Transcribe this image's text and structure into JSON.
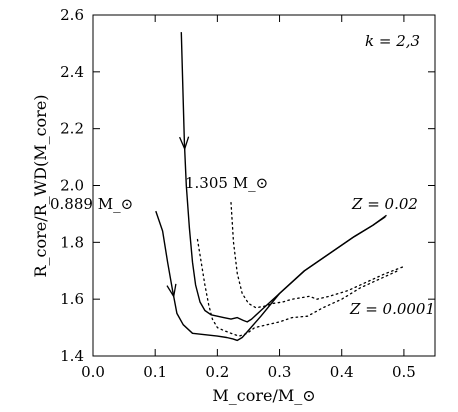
{
  "chart_data": {
    "type": "line",
    "xlabel": "M_core/M_⊙",
    "ylabel": "R_core/R_WD(M_core)",
    "xlim": [
      0.0,
      0.55
    ],
    "ylim": [
      1.4,
      2.6
    ],
    "xticks": [
      "0.0",
      "0.1",
      "0.2",
      "0.3",
      "0.4",
      "0.5"
    ],
    "yticks": [
      "1.4",
      "1.6",
      "1.8",
      "2.0",
      "2.2",
      "2.4",
      "2.6"
    ],
    "grid": false,
    "annotations": {
      "k": "k = 2,3",
      "mass_low": "0.889 M_⊙",
      "mass_high": "1.305 M_⊙",
      "z_high": "Z = 0.02",
      "z_low": "Z = 0.0001"
    },
    "series": [
      {
        "style": "solid",
        "x": [
          0.101,
          0.112,
          0.12,
          0.128,
          0.135,
          0.145,
          0.16,
          0.18,
          0.2,
          0.215,
          0.225,
          0.232,
          0.24,
          0.25,
          0.27,
          0.3,
          0.34,
          0.38,
          0.42,
          0.45,
          0.47
        ],
        "y": [
          1.91,
          1.84,
          1.73,
          1.63,
          1.55,
          1.51,
          1.48,
          1.475,
          1.47,
          1.465,
          1.46,
          1.455,
          1.465,
          1.49,
          1.54,
          1.62,
          1.7,
          1.76,
          1.82,
          1.86,
          1.89
        ]
      },
      {
        "style": "solid",
        "x": [
          0.142,
          0.145,
          0.147,
          0.15,
          0.155,
          0.16,
          0.165,
          0.172,
          0.18,
          0.19,
          0.2,
          0.21,
          0.222,
          0.232,
          0.242,
          0.248,
          0.255,
          0.27,
          0.3,
          0.34,
          0.38,
          0.42,
          0.45,
          0.472
        ],
        "y": [
          2.54,
          2.3,
          2.15,
          2.0,
          1.85,
          1.73,
          1.65,
          1.59,
          1.56,
          1.545,
          1.54,
          1.535,
          1.53,
          1.535,
          1.525,
          1.52,
          1.53,
          1.56,
          1.62,
          1.7,
          1.76,
          1.82,
          1.86,
          1.895
        ]
      },
      {
        "style": "dotted",
        "x": [
          0.168,
          0.174,
          0.18,
          0.186,
          0.192,
          0.2,
          0.21,
          0.222,
          0.235,
          0.248,
          0.26,
          0.28,
          0.3,
          0.32,
          0.345,
          0.37,
          0.4,
          0.43,
          0.46,
          0.49
        ],
        "y": [
          1.81,
          1.73,
          1.65,
          1.58,
          1.53,
          1.5,
          1.49,
          1.48,
          1.47,
          1.48,
          1.5,
          1.51,
          1.52,
          1.535,
          1.54,
          1.57,
          1.6,
          1.64,
          1.67,
          1.7
        ]
      },
      {
        "style": "dotted",
        "x": [
          0.222,
          0.226,
          0.232,
          0.24,
          0.25,
          0.262,
          0.275,
          0.29,
          0.305,
          0.32,
          0.335,
          0.348,
          0.36,
          0.38,
          0.41,
          0.44,
          0.47,
          0.5
        ],
        "y": [
          1.94,
          1.8,
          1.69,
          1.62,
          1.585,
          1.57,
          1.575,
          1.585,
          1.59,
          1.6,
          1.605,
          1.61,
          1.6,
          1.61,
          1.63,
          1.66,
          1.69,
          1.715
        ]
      }
    ],
    "arrows": [
      {
        "on_series": 0,
        "x": 0.128,
        "y": 1.63,
        "dir_x": 0.135,
        "dir_y": 1.55
      },
      {
        "on_series": 1,
        "x": 0.147,
        "y": 2.15,
        "dir_x": 0.15,
        "dir_y": 2.0
      }
    ]
  }
}
